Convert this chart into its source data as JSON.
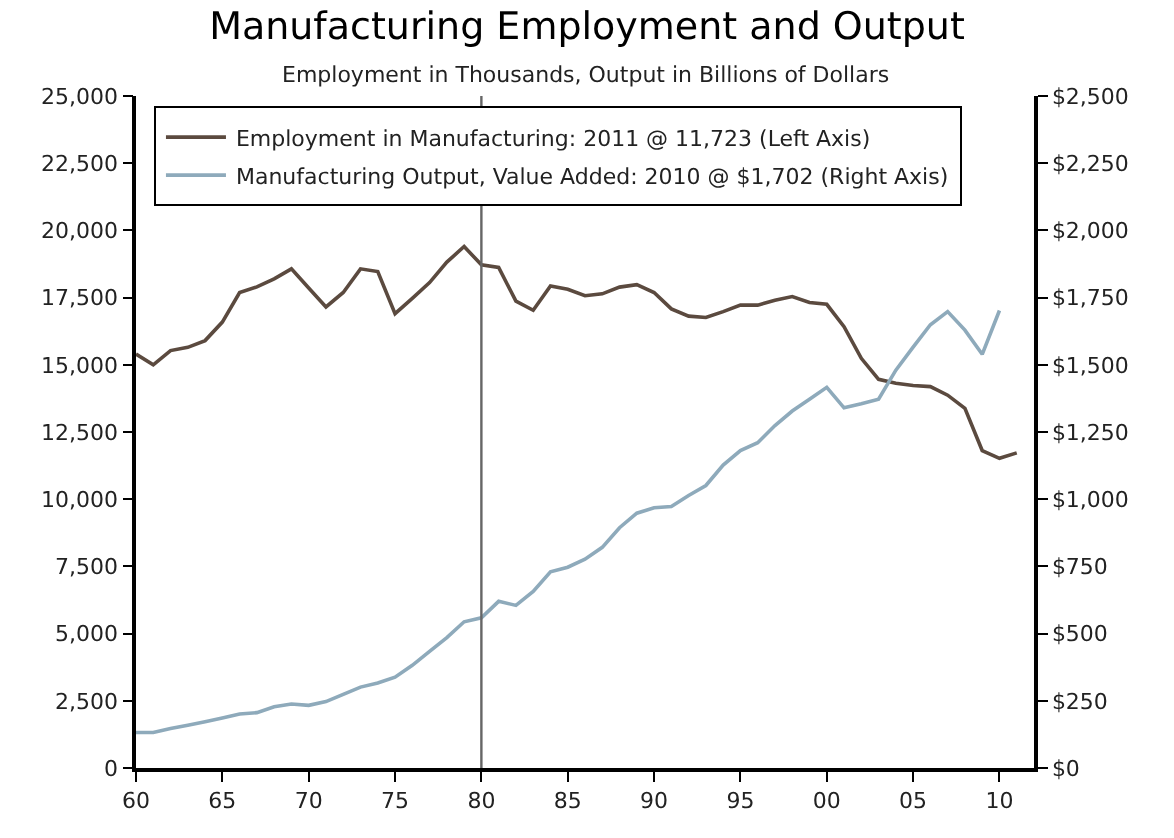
{
  "chart_data": {
    "type": "line",
    "title": "Manufacturing Employment and Output",
    "subtitle": "Employment in Thousands, Output in Billions of Dollars",
    "x": [
      1960,
      1961,
      1962,
      1963,
      1964,
      1965,
      1966,
      1967,
      1968,
      1969,
      1970,
      1971,
      1972,
      1973,
      1974,
      1975,
      1976,
      1977,
      1978,
      1979,
      1980,
      1981,
      1982,
      1983,
      1984,
      1985,
      1986,
      1987,
      1988,
      1989,
      1990,
      1991,
      1992,
      1993,
      1994,
      1995,
      1996,
      1997,
      1998,
      1999,
      2000,
      2001,
      2002,
      2003,
      2004,
      2005,
      2006,
      2007,
      2008,
      2009,
      2010,
      2011
    ],
    "series": [
      {
        "name": "Employment in Manufacturing: 2011 @ 11,723 (Left Axis)",
        "color": "#5b4a3f",
        "values": [
          15400,
          15000,
          15530,
          15650,
          15900,
          16590,
          17690,
          17900,
          18200,
          18570,
          17860,
          17150,
          17690,
          18570,
          18470,
          16900,
          17470,
          18060,
          18820,
          19400,
          18720,
          18620,
          17370,
          17030,
          17930,
          17810,
          17570,
          17640,
          17890,
          17980,
          17690,
          17080,
          16810,
          16760,
          16980,
          17220,
          17220,
          17400,
          17540,
          17320,
          17250,
          16420,
          15240,
          14460,
          14310,
          14230,
          14190,
          13870,
          13380,
          11810,
          11520,
          11723
        ]
      },
      {
        "name": "Manufacturing Output, Value Added: 2010 @ $1,702 (Right Axis)",
        "color": "#8eaabb",
        "axis": "y2",
        "values": [
          132,
          132,
          147,
          159,
          172,
          186,
          201,
          206,
          228,
          238,
          233,
          247,
          274,
          301,
          316,
          338,
          382,
          434,
          485,
          544,
          559,
          620,
          605,
          657,
          730,
          747,
          777,
          821,
          894,
          948,
          968,
          973,
          1014,
          1051,
          1127,
          1181,
          1210,
          1274,
          1328,
          1372,
          1416,
          1340,
          1355,
          1372,
          1480,
          1566,
          1649,
          1698,
          1629,
          1539,
          1702,
          null
        ]
      }
    ],
    "xlim": [
      1960,
      2012
    ],
    "xticks": [
      {
        "value": 1960,
        "label": "60"
      },
      {
        "value": 1965,
        "label": "65"
      },
      {
        "value": 1970,
        "label": "70"
      },
      {
        "value": 1975,
        "label": "75"
      },
      {
        "value": 1980,
        "label": "80"
      },
      {
        "value": 1985,
        "label": "85"
      },
      {
        "value": 1990,
        "label": "90"
      },
      {
        "value": 1995,
        "label": "95"
      },
      {
        "value": 2000,
        "label": "00"
      },
      {
        "value": 2005,
        "label": "05"
      },
      {
        "value": 2010,
        "label": "10"
      }
    ],
    "ylim": [
      0,
      25000
    ],
    "yticks": [
      {
        "value": 0,
        "label": "0"
      },
      {
        "value": 2500,
        "label": "2,500"
      },
      {
        "value": 5000,
        "label": "5,000"
      },
      {
        "value": 7500,
        "label": "7,500"
      },
      {
        "value": 10000,
        "label": "10,000"
      },
      {
        "value": 12500,
        "label": "12,500"
      },
      {
        "value": 15000,
        "label": "15,000"
      },
      {
        "value": 17500,
        "label": "17,500"
      },
      {
        "value": 20000,
        "label": "20,000"
      },
      {
        "value": 22500,
        "label": "22,500"
      },
      {
        "value": 25000,
        "label": "25,000"
      }
    ],
    "y2lim": [
      0,
      2500
    ],
    "y2ticks": [
      {
        "value": 0,
        "label": "$0"
      },
      {
        "value": 250,
        "label": "$250"
      },
      {
        "value": 500,
        "label": "$500"
      },
      {
        "value": 750,
        "label": "$750"
      },
      {
        "value": 1000,
        "label": "$1,000"
      },
      {
        "value": 1250,
        "label": "$1,250"
      },
      {
        "value": 1500,
        "label": "$1,500"
      },
      {
        "value": 1750,
        "label": "$1,750"
      },
      {
        "value": 2000,
        "label": "$2,000"
      },
      {
        "value": 2250,
        "label": "$2,250"
      },
      {
        "value": 2500,
        "label": "$2,500"
      }
    ],
    "ref_lines": [
      {
        "axis": "x",
        "value": 1980,
        "color": "#666666"
      }
    ],
    "legend": "top left",
    "marker": "none",
    "line_style": "solid"
  }
}
